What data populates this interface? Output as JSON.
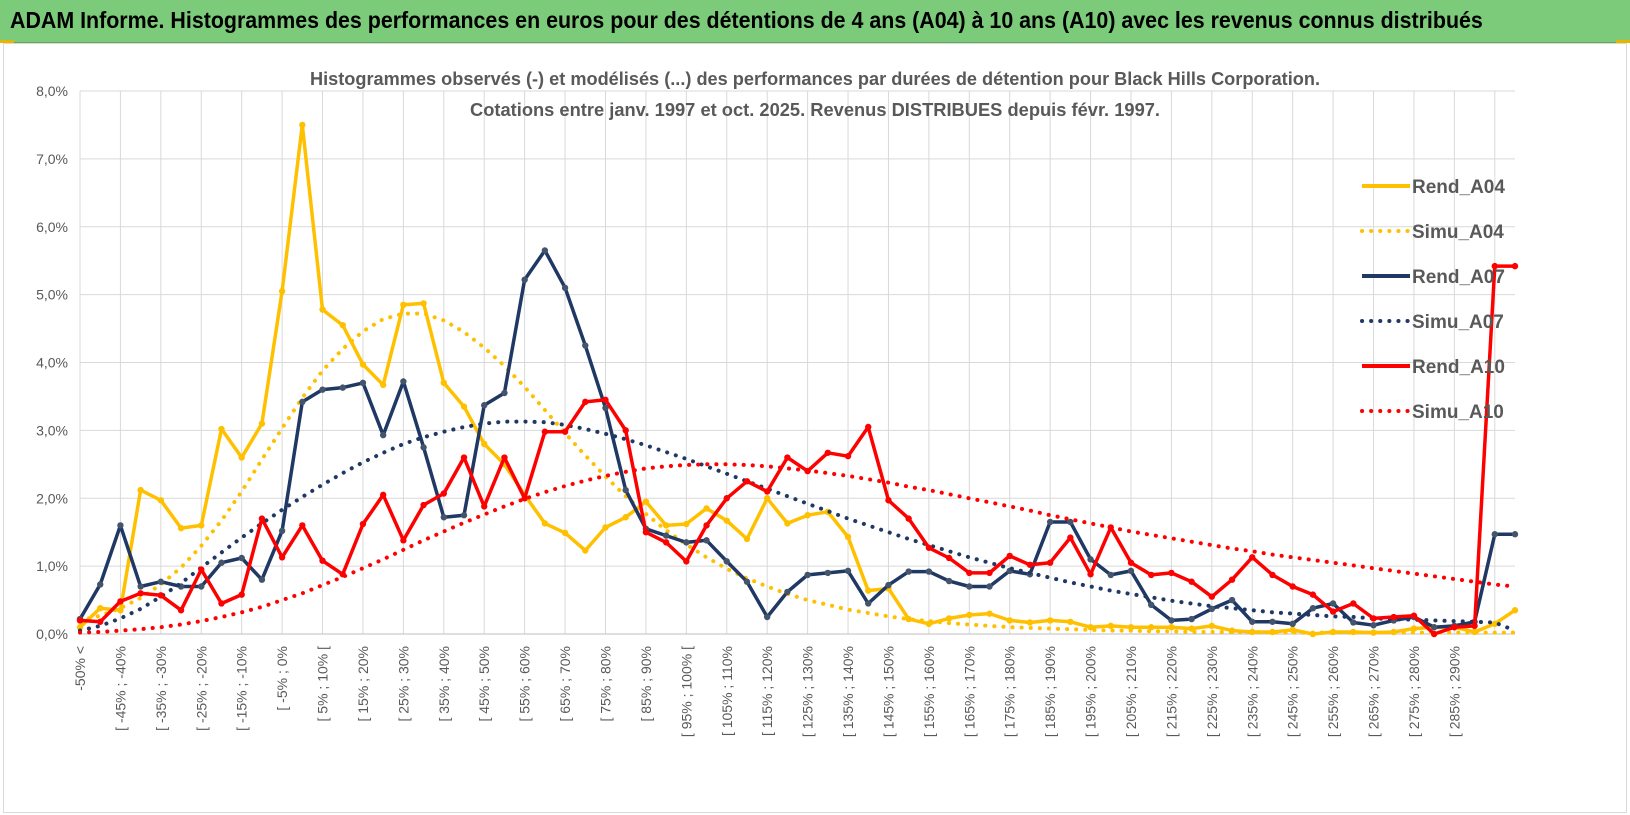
{
  "banner": {
    "title": "ADAM Informe. Histogrammes des performances en euros pour des détentions de 4 ans (A04) à 10 ans (A10) avec les revenus connus distribués"
  },
  "colors": {
    "a04": "#ffc000",
    "a07": "#1f3864",
    "a10": "#ff0000",
    "grid": "#d9d9d9",
    "banner": "#7ccb7a"
  },
  "chart_data": {
    "type": "line",
    "title": "Histogrammes observés (-) et modélisés (...) des performances par durées de détention pour Black Hills Corporation.",
    "subtitle": "Cotations entre janv. 1997 et oct. 2025.  Revenus DISTRIBUES depuis févr. 1997.",
    "xlabel": "",
    "ylabel": "",
    "ylim": [
      0,
      8
    ],
    "y_ticks": [
      "0,0%",
      "1,0%",
      "2,0%",
      "3,0%",
      "4,0%",
      "5,0%",
      "6,0%",
      "7,0%",
      "8,0%"
    ],
    "x_tick_labels": [
      "-50% <",
      "[ -45% ; -40%",
      "[ -35% ; -30%",
      "[ -25% ; -20%",
      "[ -15% ; -10%",
      "[ -5% ; 0%",
      "[ 5% ; 10% [",
      "[ 15% ; 20%",
      "[ 25% ; 30%",
      "[ 35% ; 40%",
      "[ 45% ; 50%",
      "[ 55% ; 60%",
      "[ 65% ; 70%",
      "[ 75% ; 80%",
      "[ 85% ; 90%",
      "[ 95% ; 100% [",
      "[ 105% ; 110%",
      "[ 115% ; 120%",
      "[ 125% ; 130%",
      "[ 135% ; 140%",
      "[ 145% ; 150%",
      "[ 155% ; 160%",
      "[ 165% ; 170%",
      "[ 175% ; 180%",
      "[ 185% ; 190%",
      "[ 195% ; 200%",
      "[ 205% ; 210%",
      "[ 215% ; 220%",
      "[ 225% ; 230%",
      "[ 235% ; 240%",
      "[ 245% ; 250%",
      "[ 255% ; 260%",
      "[ 265% ; 270%",
      "[ 275% ; 280%",
      "[ 285% ; 290%"
    ],
    "grid": true,
    "legend_position": "right",
    "series": [
      {
        "name": "Rend_A04",
        "style": "solid",
        "color": "#ffc000",
        "values": [
          0.1,
          0.38,
          0.35,
          2.12,
          1.97,
          1.56,
          1.6,
          3.02,
          2.6,
          3.1,
          5.05,
          7.5,
          4.78,
          4.55,
          3.97,
          3.67,
          4.85,
          4.87,
          3.7,
          3.35,
          2.8,
          2.5,
          2.05,
          1.63,
          1.49,
          1.23,
          1.57,
          1.72,
          1.95,
          1.6,
          1.62,
          1.85,
          1.67,
          1.4,
          2.0,
          1.63,
          1.75,
          1.8,
          1.43,
          0.64,
          0.67,
          0.22,
          0.15,
          0.23,
          0.28,
          0.3,
          0.2,
          0.17,
          0.2,
          0.18,
          0.1,
          0.12,
          0.1,
          0.1,
          0.1,
          0.08,
          0.12,
          0.05,
          0.03,
          0.03,
          0.06,
          0.0,
          0.03,
          0.03,
          0.02,
          0.03,
          0.08,
          0.1,
          0.1,
          0.03,
          0.15,
          0.35
        ]
      },
      {
        "name": "Simu_A04",
        "style": "dotted",
        "color": "#ffc000",
        "values": [
          0.2,
          0.27,
          0.38,
          0.53,
          0.73,
          0.98,
          1.3,
          1.67,
          2.1,
          2.57,
          3.03,
          3.48,
          3.88,
          4.2,
          4.46,
          4.64,
          4.72,
          4.72,
          4.62,
          4.45,
          4.22,
          3.95,
          3.64,
          3.3,
          2.96,
          2.63,
          2.32,
          2.03,
          1.77,
          1.53,
          1.32,
          1.13,
          0.96,
          0.82,
          0.7,
          0.59,
          0.5,
          0.43,
          0.36,
          0.31,
          0.26,
          0.22,
          0.19,
          0.16,
          0.14,
          0.12,
          0.1,
          0.09,
          0.08,
          0.07,
          0.06,
          0.05,
          0.05,
          0.04,
          0.04,
          0.03,
          0.03,
          0.03,
          0.03,
          0.02,
          0.02,
          0.02,
          0.02,
          0.02,
          0.02,
          0.02,
          0.02,
          0.02,
          0.02,
          0.02,
          0.02,
          0.02
        ]
      },
      {
        "name": "Rend_A07",
        "style": "solid",
        "color": "#1f3864",
        "values": [
          0.22,
          0.73,
          1.6,
          0.7,
          0.77,
          0.7,
          0.7,
          1.05,
          1.12,
          0.8,
          1.52,
          3.42,
          3.6,
          3.63,
          3.7,
          2.93,
          3.72,
          2.75,
          1.72,
          1.75,
          3.37,
          3.55,
          5.22,
          5.65,
          5.1,
          4.25,
          3.33,
          2.12,
          1.55,
          1.45,
          1.35,
          1.38,
          1.07,
          0.77,
          0.25,
          0.62,
          0.87,
          0.9,
          0.93,
          0.45,
          0.72,
          0.92,
          0.92,
          0.78,
          0.7,
          0.7,
          0.93,
          0.88,
          1.65,
          1.65,
          1.1,
          0.87,
          0.93,
          0.43,
          0.2,
          0.22,
          0.37,
          0.5,
          0.18,
          0.18,
          0.15,
          0.38,
          0.45,
          0.17,
          0.13,
          0.2,
          0.25,
          0.1,
          0.12,
          0.18,
          1.47,
          1.47
        ]
      },
      {
        "name": "Simu_A07",
        "style": "dotted",
        "color": "#1f3864",
        "values": [
          0.05,
          0.12,
          0.23,
          0.37,
          0.55,
          0.75,
          0.98,
          1.2,
          1.42,
          1.63,
          1.83,
          2.02,
          2.2,
          2.37,
          2.53,
          2.67,
          2.8,
          2.9,
          2.98,
          3.05,
          3.1,
          3.13,
          3.13,
          3.12,
          3.08,
          3.02,
          2.95,
          2.87,
          2.78,
          2.68,
          2.58,
          2.47,
          2.36,
          2.25,
          2.14,
          2.03,
          1.92,
          1.81,
          1.7,
          1.6,
          1.5,
          1.4,
          1.31,
          1.22,
          1.13,
          1.05,
          0.97,
          0.9,
          0.83,
          0.76,
          0.7,
          0.64,
          0.59,
          0.54,
          0.49,
          0.45,
          0.41,
          0.38,
          0.35,
          0.32,
          0.3,
          0.28,
          0.26,
          0.25,
          0.23,
          0.22,
          0.21,
          0.2,
          0.19,
          0.18,
          0.17,
          0.05
        ]
      },
      {
        "name": "Rend_A10",
        "style": "solid",
        "color": "#ff0000",
        "values": [
          0.2,
          0.18,
          0.48,
          0.6,
          0.57,
          0.35,
          0.95,
          0.45,
          0.58,
          1.7,
          1.13,
          1.6,
          1.08,
          0.88,
          1.62,
          2.05,
          1.38,
          1.9,
          2.07,
          2.6,
          1.88,
          2.6,
          2.0,
          2.98,
          2.98,
          3.42,
          3.45,
          3.0,
          1.5,
          1.35,
          1.07,
          1.6,
          2.0,
          2.25,
          2.1,
          2.6,
          2.4,
          2.67,
          2.62,
          3.05,
          1.97,
          1.7,
          1.27,
          1.12,
          0.9,
          0.9,
          1.15,
          1.02,
          1.05,
          1.42,
          0.88,
          1.57,
          1.05,
          0.87,
          0.9,
          0.77,
          0.55,
          0.8,
          1.13,
          0.87,
          0.7,
          0.58,
          0.33,
          0.45,
          0.23,
          0.25,
          0.27,
          0.0,
          0.1,
          0.12,
          5.42,
          5.42
        ]
      },
      {
        "name": "Simu_A10",
        "style": "dotted",
        "color": "#ff0000",
        "values": [
          0.02,
          0.03,
          0.05,
          0.07,
          0.1,
          0.14,
          0.19,
          0.25,
          0.32,
          0.4,
          0.5,
          0.6,
          0.72,
          0.84,
          0.97,
          1.1,
          1.24,
          1.38,
          1.51,
          1.64,
          1.76,
          1.88,
          1.99,
          2.09,
          2.18,
          2.26,
          2.33,
          2.39,
          2.44,
          2.47,
          2.49,
          2.5,
          2.5,
          2.49,
          2.47,
          2.44,
          2.41,
          2.37,
          2.33,
          2.28,
          2.23,
          2.17,
          2.12,
          2.06,
          2.0,
          1.94,
          1.88,
          1.82,
          1.75,
          1.69,
          1.63,
          1.57,
          1.51,
          1.46,
          1.41,
          1.36,
          1.31,
          1.26,
          1.22,
          1.17,
          1.13,
          1.09,
          1.05,
          1.01,
          0.97,
          0.93,
          0.89,
          0.85,
          0.81,
          0.77,
          0.73,
          0.7
        ]
      }
    ]
  }
}
